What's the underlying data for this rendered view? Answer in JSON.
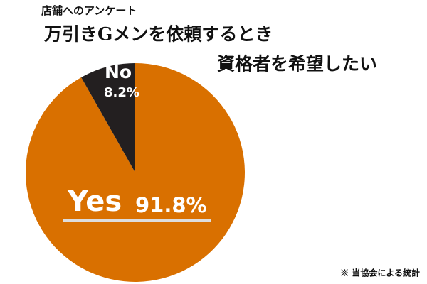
{
  "chart_data": {
    "type": "pie",
    "title": "店舗へのアンケート",
    "subtitle": [
      "万引きGメンを依頼するとき",
      "資格者を希望したい"
    ],
    "categories": [
      "Yes",
      "No"
    ],
    "values": [
      91.8,
      8.2
    ],
    "value_labels": [
      "91.8%",
      "8.2%"
    ],
    "colors": [
      "#d97000",
      "#231f20"
    ],
    "footnote": "※ 当協会による統計"
  }
}
